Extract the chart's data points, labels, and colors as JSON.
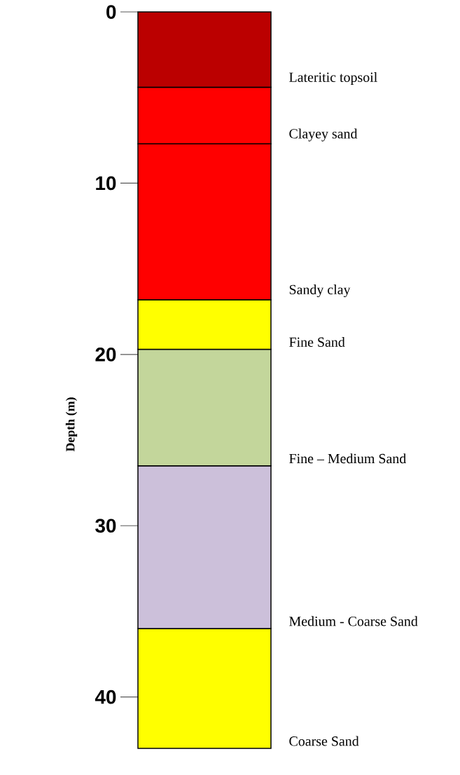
{
  "chart_data": {
    "type": "bar",
    "stacked": true,
    "ylabel": "Depth (m)",
    "categories": [
      null
    ],
    "ylim": [
      43,
      0
    ],
    "yticks": [
      0,
      10,
      20,
      30,
      40
    ],
    "series": [
      {
        "name": "Lateritic topsoil",
        "color": "#bb0000",
        "values": [
          4.4
        ]
      },
      {
        "name": "Clayey sand",
        "color": "#ff0000",
        "values": [
          3.3
        ]
      },
      {
        "name": "Sandy clay",
        "color": "#ff0000",
        "values": [
          9.1
        ]
      },
      {
        "name": "Fine Sand",
        "color": "#ffff00",
        "values": [
          2.9
        ]
      },
      {
        "name": "Fine – Medium Sand",
        "color": "#c3d69b",
        "values": [
          6.8
        ]
      },
      {
        "name": "Medium - Coarse Sand",
        "color": "#ccc0da",
        "values": [
          9.5
        ]
      },
      {
        "name": "Coarse Sand",
        "color": "#ffff00",
        "values": [
          7.0
        ]
      }
    ]
  }
}
